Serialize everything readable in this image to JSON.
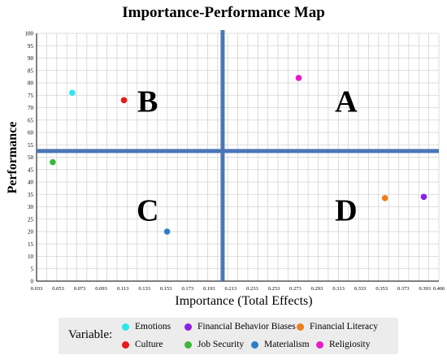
{
  "chart_data": {
    "type": "scatter",
    "title": "Importance-Performance Map",
    "xlabel": "Importance (Total Effects)",
    "ylabel": "Performance",
    "xlim": [
      0.033,
      0.406
    ],
    "ylim": [
      0,
      100
    ],
    "x_ticks": [
      "0.033",
      "0.053",
      "0.073",
      "0.093",
      "0.113",
      "0.133",
      "0.153",
      "0.173",
      "0.193",
      "0.213",
      "0.233",
      "0.253",
      "0.273",
      "0.293",
      "0.313",
      "0.333",
      "0.353",
      "0.373",
      "0.393",
      "0.406"
    ],
    "y_ticks": [
      "0",
      "5",
      "10",
      "15",
      "20",
      "25",
      "30",
      "35",
      "40",
      "45",
      "50",
      "55",
      "60",
      "65",
      "70",
      "75",
      "80",
      "85",
      "90",
      "95",
      "100"
    ],
    "grid": true,
    "reference_lines": {
      "x": 0.2055,
      "y": 52.5
    },
    "quadrant_labels": [
      {
        "label": "A",
        "x": 0.32,
        "y": 73
      },
      {
        "label": "B",
        "x": 0.136,
        "y": 73
      },
      {
        "label": "C",
        "x": 0.136,
        "y": 29
      },
      {
        "label": "D",
        "x": 0.32,
        "y": 29
      }
    ],
    "legend_title": "Variable:",
    "legend_position": "bottom",
    "series": [
      {
        "name": "Emotions",
        "color": "#2ee6f0",
        "x": 0.066,
        "y": 76
      },
      {
        "name": "Financial Behavior Biases",
        "color": "#8b1ee8",
        "x": 0.392,
        "y": 34
      },
      {
        "name": "Financial Literacy",
        "color": "#f07d1a",
        "x": 0.356,
        "y": 33.5
      },
      {
        "name": "Culture",
        "color": "#e81a1a",
        "x": 0.114,
        "y": 73
      },
      {
        "name": "Job Security",
        "color": "#3cb83c",
        "x": 0.048,
        "y": 48
      },
      {
        "name": "Materialism",
        "color": "#2b7fc9",
        "x": 0.154,
        "y": 20
      },
      {
        "name": "Religiosity",
        "color": "#e81ac7",
        "x": 0.276,
        "y": 82
      }
    ]
  }
}
